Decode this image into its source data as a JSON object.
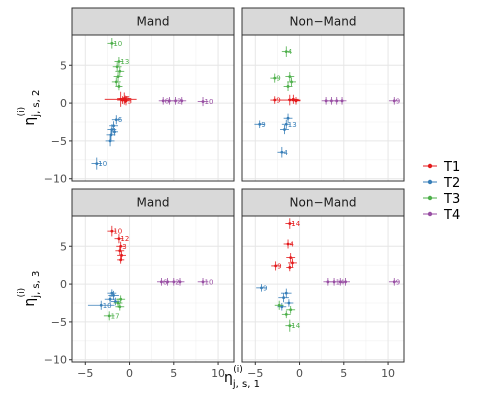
{
  "chart_data": {
    "type": "scatter",
    "title": "",
    "xlabel": {
      "base": "η",
      "sup": "(i)",
      "sub": "j, s, 1"
    },
    "ylabels": [
      {
        "base": "η",
        "sup": "(i)",
        "sub": "j, s, 2"
      },
      {
        "base": "η",
        "sup": "(i)",
        "sub": "j, s, 3"
      }
    ],
    "xlim": [
      -6.5,
      11.8
    ],
    "ylim": [
      -10.3,
      9.0
    ],
    "xticks": [
      -5,
      0,
      5,
      10
    ],
    "yticks": [
      -10,
      -5,
      0,
      5
    ],
    "columns": [
      "Mand",
      "Non−Mand"
    ],
    "grid": true,
    "legend_position": "right",
    "series": [
      {
        "name": "T1",
        "color": "#E41A1C"
      },
      {
        "name": "T2",
        "color": "#377EB8"
      },
      {
        "name": "T3",
        "color": "#4DAF4A"
      },
      {
        "name": "T4",
        "color": "#984EA3"
      }
    ],
    "panels": [
      {
        "row": 0,
        "col": 0,
        "points": [
          {
            "s": 0,
            "x": -1.0,
            "y": 0.5,
            "ex": 1.8,
            "ey": 1.0,
            "label": ""
          },
          {
            "s": 0,
            "x": -0.6,
            "y": 0.6,
            "ex": 0.8,
            "ey": 0.8,
            "label": "5"
          },
          {
            "s": 0,
            "x": -0.4,
            "y": 0.3,
            "ex": 0.6,
            "ey": 0.6,
            "label": "3"
          },
          {
            "s": 0,
            "x": -0.8,
            "y": 0.4,
            "ex": 0.6,
            "ey": 0.5,
            "label": ""
          },
          {
            "s": 0,
            "x": -0.5,
            "y": 0.5,
            "ex": 0.5,
            "ey": 0.5,
            "label": ""
          },
          {
            "s": 1,
            "x": -3.7,
            "y": -8.0,
            "ex": 0.6,
            "ey": 0.8,
            "label": "10"
          },
          {
            "s": 1,
            "x": -1.5,
            "y": -2.2,
            "ex": 0.5,
            "ey": 0.6,
            "label": "6"
          },
          {
            "s": 1,
            "x": -1.8,
            "y": -3.0,
            "ex": 0.5,
            "ey": 0.6,
            "label": ""
          },
          {
            "s": 1,
            "x": -2.0,
            "y": -3.5,
            "ex": 0.5,
            "ey": 0.7,
            "label": ""
          },
          {
            "s": 1,
            "x": -2.1,
            "y": -4.2,
            "ex": 0.5,
            "ey": 0.7,
            "label": ""
          },
          {
            "s": 1,
            "x": -2.2,
            "y": -5.0,
            "ex": 0.5,
            "ey": 0.7,
            "label": ""
          },
          {
            "s": 1,
            "x": -1.7,
            "y": -3.8,
            "ex": 0.4,
            "ey": 0.5,
            "label": ""
          },
          {
            "s": 2,
            "x": -2.0,
            "y": 7.9,
            "ex": 0.5,
            "ey": 0.7,
            "label": "10"
          },
          {
            "s": 2,
            "x": -1.2,
            "y": 5.5,
            "ex": 0.5,
            "ey": 0.6,
            "label": "13"
          },
          {
            "s": 2,
            "x": -1.4,
            "y": 4.8,
            "ex": 0.5,
            "ey": 0.6,
            "label": ""
          },
          {
            "s": 2,
            "x": -1.1,
            "y": 4.2,
            "ex": 0.5,
            "ey": 0.6,
            "label": ""
          },
          {
            "s": 2,
            "x": -1.3,
            "y": 3.5,
            "ex": 0.5,
            "ey": 0.6,
            "label": ""
          },
          {
            "s": 2,
            "x": -1.5,
            "y": 2.8,
            "ex": 0.5,
            "ey": 0.6,
            "label": ""
          },
          {
            "s": 2,
            "x": -1.2,
            "y": 2.2,
            "ex": 0.4,
            "ey": 0.5,
            "label": ""
          },
          {
            "s": 3,
            "x": 8.3,
            "y": 0.2,
            "ex": 0.6,
            "ey": 0.6,
            "label": "10"
          },
          {
            "s": 3,
            "x": 3.8,
            "y": 0.3,
            "ex": 0.5,
            "ey": 0.5,
            "label": "6"
          },
          {
            "s": 3,
            "x": 4.5,
            "y": 0.3,
            "ex": 0.5,
            "ey": 0.5,
            "label": ""
          },
          {
            "s": 3,
            "x": 5.2,
            "y": 0.3,
            "ex": 0.5,
            "ey": 0.5,
            "label": "2"
          },
          {
            "s": 3,
            "x": 5.9,
            "y": 0.3,
            "ex": 0.5,
            "ey": 0.5,
            "label": ""
          }
        ]
      },
      {
        "row": 0,
        "col": 1,
        "points": [
          {
            "s": 0,
            "x": -1.1,
            "y": 0.4,
            "ex": 1.2,
            "ey": 0.7,
            "label": ""
          },
          {
            "s": 0,
            "x": -0.7,
            "y": 0.5,
            "ex": 0.6,
            "ey": 0.6,
            "label": ""
          },
          {
            "s": 0,
            "x": -2.8,
            "y": 0.4,
            "ex": 0.5,
            "ey": 0.5,
            "label": "9"
          },
          {
            "s": 0,
            "x": -0.4,
            "y": 0.3,
            "ex": 0.5,
            "ey": 0.5,
            "label": ""
          },
          {
            "s": 1,
            "x": -4.5,
            "y": -2.8,
            "ex": 0.6,
            "ey": 0.5,
            "label": "9"
          },
          {
            "s": 1,
            "x": -1.3,
            "y": -2.0,
            "ex": 0.5,
            "ey": 0.6,
            "label": ""
          },
          {
            "s": 1,
            "x": -1.5,
            "y": -2.8,
            "ex": 0.5,
            "ey": 0.6,
            "label": "13"
          },
          {
            "s": 1,
            "x": -1.7,
            "y": -3.5,
            "ex": 0.5,
            "ey": 0.6,
            "label": ""
          },
          {
            "s": 1,
            "x": -2.0,
            "y": -6.5,
            "ex": 0.5,
            "ey": 0.7,
            "label": "4"
          },
          {
            "s": 2,
            "x": -1.5,
            "y": 6.8,
            "ex": 0.5,
            "ey": 0.7,
            "label": "4"
          },
          {
            "s": 2,
            "x": -2.8,
            "y": 3.3,
            "ex": 0.5,
            "ey": 0.6,
            "label": "9"
          },
          {
            "s": 2,
            "x": -1.1,
            "y": 3.5,
            "ex": 0.5,
            "ey": 0.6,
            "label": ""
          },
          {
            "s": 2,
            "x": -0.9,
            "y": 2.8,
            "ex": 0.5,
            "ey": 0.6,
            "label": ""
          },
          {
            "s": 2,
            "x": -1.3,
            "y": 2.2,
            "ex": 0.5,
            "ey": 0.6,
            "label": ""
          },
          {
            "s": 3,
            "x": 10.7,
            "y": 0.3,
            "ex": 0.6,
            "ey": 0.5,
            "label": "9"
          },
          {
            "s": 3,
            "x": 3.0,
            "y": 0.3,
            "ex": 0.5,
            "ey": 0.5,
            "label": ""
          },
          {
            "s": 3,
            "x": 3.6,
            "y": 0.3,
            "ex": 0.5,
            "ey": 0.5,
            "label": ""
          },
          {
            "s": 3,
            "x": 4.2,
            "y": 0.3,
            "ex": 0.5,
            "ey": 0.5,
            "label": ""
          },
          {
            "s": 3,
            "x": 4.8,
            "y": 0.3,
            "ex": 0.5,
            "ey": 0.5,
            "label": ""
          }
        ]
      },
      {
        "row": 1,
        "col": 0,
        "points": [
          {
            "s": 0,
            "x": -2.0,
            "y": 7.0,
            "ex": 0.5,
            "ey": 0.7,
            "label": "10"
          },
          {
            "s": 0,
            "x": -1.2,
            "y": 6.0,
            "ex": 0.5,
            "ey": 0.6,
            "label": "12"
          },
          {
            "s": 0,
            "x": -1.0,
            "y": 5.0,
            "ex": 0.5,
            "ey": 0.6,
            "label": "3"
          },
          {
            "s": 0,
            "x": -1.1,
            "y": 4.4,
            "ex": 0.5,
            "ey": 0.6,
            "label": ""
          },
          {
            "s": 0,
            "x": -0.9,
            "y": 3.8,
            "ex": 0.5,
            "ey": 0.6,
            "label": ""
          },
          {
            "s": 0,
            "x": -1.0,
            "y": 3.2,
            "ex": 0.4,
            "ey": 0.5,
            "label": ""
          },
          {
            "s": 1,
            "x": -3.2,
            "y": -2.8,
            "ex": 1.5,
            "ey": 0.6,
            "label": "10"
          },
          {
            "s": 1,
            "x": -1.8,
            "y": -1.5,
            "ex": 0.6,
            "ey": 0.6,
            "label": ""
          },
          {
            "s": 1,
            "x": -2.2,
            "y": -2.0,
            "ex": 0.6,
            "ey": 0.6,
            "label": ""
          },
          {
            "s": 1,
            "x": -1.6,
            "y": -2.3,
            "ex": 0.5,
            "ey": 0.5,
            "label": ""
          },
          {
            "s": 1,
            "x": -2.0,
            "y": -1.2,
            "ex": 0.5,
            "ey": 0.5,
            "label": ""
          },
          {
            "s": 2,
            "x": -2.3,
            "y": -4.2,
            "ex": 0.6,
            "ey": 0.6,
            "label": "17"
          },
          {
            "s": 2,
            "x": -1.3,
            "y": -2.5,
            "ex": 0.5,
            "ey": 0.6,
            "label": ""
          },
          {
            "s": 2,
            "x": -1.1,
            "y": -3.0,
            "ex": 0.5,
            "ey": 0.5,
            "label": ""
          },
          {
            "s": 2,
            "x": -1.0,
            "y": -2.0,
            "ex": 0.5,
            "ey": 0.5,
            "label": ""
          },
          {
            "s": 3,
            "x": 8.3,
            "y": 0.3,
            "ex": 0.6,
            "ey": 0.5,
            "label": "10"
          },
          {
            "s": 3,
            "x": 3.6,
            "y": 0.3,
            "ex": 0.5,
            "ey": 0.5,
            "label": "6"
          },
          {
            "s": 3,
            "x": 4.3,
            "y": 0.3,
            "ex": 0.5,
            "ey": 0.5,
            "label": ""
          },
          {
            "s": 3,
            "x": 5.0,
            "y": 0.3,
            "ex": 0.5,
            "ey": 0.5,
            "label": "2"
          },
          {
            "s": 3,
            "x": 5.7,
            "y": 0.3,
            "ex": 0.5,
            "ey": 0.5,
            "label": ""
          }
        ]
      },
      {
        "row": 1,
        "col": 1,
        "points": [
          {
            "s": 0,
            "x": -1.1,
            "y": 8.0,
            "ex": 0.5,
            "ey": 0.7,
            "label": "14"
          },
          {
            "s": 0,
            "x": -1.3,
            "y": 5.3,
            "ex": 0.5,
            "ey": 0.6,
            "label": "4"
          },
          {
            "s": 0,
            "x": -2.7,
            "y": 2.4,
            "ex": 0.5,
            "ey": 0.6,
            "label": "9"
          },
          {
            "s": 0,
            "x": -1.0,
            "y": 3.5,
            "ex": 0.5,
            "ey": 0.6,
            "label": ""
          },
          {
            "s": 0,
            "x": -0.8,
            "y": 2.8,
            "ex": 0.5,
            "ey": 0.6,
            "label": ""
          },
          {
            "s": 0,
            "x": -1.1,
            "y": 2.2,
            "ex": 0.4,
            "ey": 0.5,
            "label": ""
          },
          {
            "s": 1,
            "x": -4.3,
            "y": -0.5,
            "ex": 0.6,
            "ey": 0.5,
            "label": "9"
          },
          {
            "s": 1,
            "x": -1.5,
            "y": -1.2,
            "ex": 0.6,
            "ey": 0.6,
            "label": ""
          },
          {
            "s": 1,
            "x": -1.8,
            "y": -1.8,
            "ex": 0.6,
            "ey": 0.6,
            "label": ""
          },
          {
            "s": 1,
            "x": -1.2,
            "y": -2.5,
            "ex": 0.5,
            "ey": 0.5,
            "label": ""
          },
          {
            "s": 1,
            "x": -2.0,
            "y": -3.0,
            "ex": 0.5,
            "ey": 0.5,
            "label": ""
          },
          {
            "s": 2,
            "x": -1.1,
            "y": -5.5,
            "ex": 0.5,
            "ey": 0.8,
            "label": "14"
          },
          {
            "s": 2,
            "x": -2.3,
            "y": -2.8,
            "ex": 0.5,
            "ey": 0.6,
            "label": ""
          },
          {
            "s": 2,
            "x": -1.0,
            "y": -3.4,
            "ex": 0.5,
            "ey": 0.5,
            "label": ""
          },
          {
            "s": 2,
            "x": -1.5,
            "y": -4.0,
            "ex": 0.5,
            "ey": 0.5,
            "label": ""
          },
          {
            "s": 3,
            "x": 10.7,
            "y": 0.3,
            "ex": 0.6,
            "ey": 0.5,
            "label": "9"
          },
          {
            "s": 3,
            "x": 3.2,
            "y": 0.3,
            "ex": 0.5,
            "ey": 0.5,
            "label": ""
          },
          {
            "s": 3,
            "x": 3.9,
            "y": 0.3,
            "ex": 0.5,
            "ey": 0.5,
            "label": "14"
          },
          {
            "s": 3,
            "x": 4.6,
            "y": 0.3,
            "ex": 0.5,
            "ey": 0.5,
            "label": ""
          },
          {
            "s": 3,
            "x": 5.2,
            "y": 0.3,
            "ex": 0.5,
            "ey": 0.5,
            "label": ""
          }
        ]
      }
    ]
  }
}
